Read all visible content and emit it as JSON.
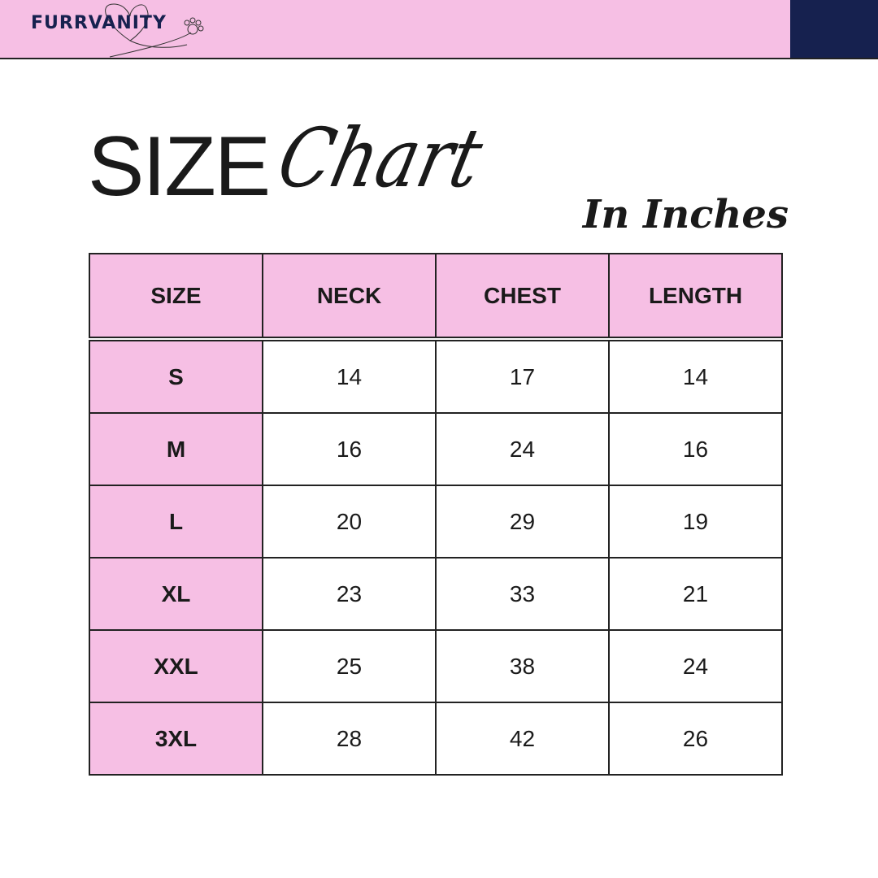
{
  "brand": {
    "logo_text": "FURRVANITY",
    "colors": {
      "pink": "#f6bfe4",
      "navy": "#16214f"
    }
  },
  "title": {
    "main": "SIZE",
    "script": "Chart",
    "units": "In Inches"
  },
  "table": {
    "headers": [
      "SIZE",
      "NECK",
      "CHEST",
      "LENGTH"
    ],
    "rows": [
      [
        "S",
        "14",
        "17",
        "14"
      ],
      [
        "M",
        "16",
        "24",
        "16"
      ],
      [
        "L",
        "20",
        "29",
        "19"
      ],
      [
        "XL",
        "23",
        "33",
        "21"
      ],
      [
        "XXL",
        "25",
        "38",
        "24"
      ],
      [
        "3XL",
        "28",
        "42",
        "26"
      ]
    ]
  }
}
